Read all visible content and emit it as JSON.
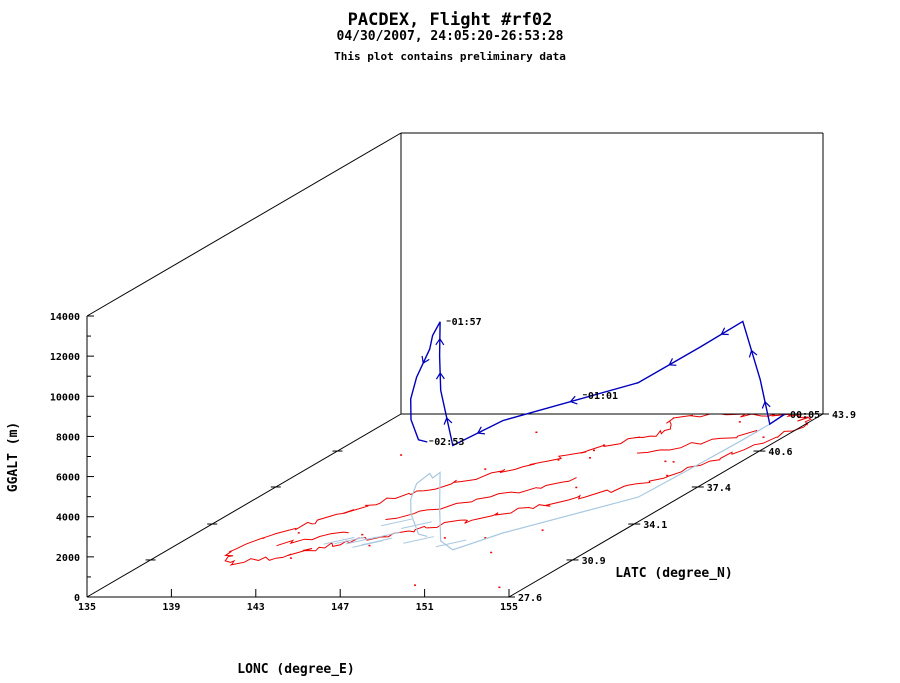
{
  "title": "PACDEX, Flight #rf02",
  "subtitle": "04/30/2007, 24:05:20-26:53:28",
  "note": "This plot contains preliminary data",
  "chart_data": {
    "type": "line3d",
    "xlabel": "LONC (degree_E)",
    "ylabel": "LATC (degree_N)",
    "zlabel": "GGALT (m)",
    "xlim": [
      135,
      155
    ],
    "ylim": [
      27.6,
      43.9
    ],
    "zlim": [
      0,
      14000
    ],
    "x_ticks": [
      "135",
      "139",
      "143",
      "147",
      "151",
      "155"
    ],
    "y_ticks": [
      "27.6",
      "30.9",
      "34.1",
      "37.4",
      "40.6",
      "43.9"
    ],
    "z_ticks": [
      "0",
      "2000",
      "4000",
      "6000",
      "8000",
      "10000",
      "12000",
      "14000"
    ],
    "grid": false,
    "colors": {
      "track": "#0000bb",
      "coast": "#ee0000",
      "shadow": "#a8c8e0",
      "frame": "#000000"
    },
    "time_labels": [
      {
        "text": "00:05",
        "lon": 153.2,
        "lat": 43.9,
        "alt": 0
      },
      {
        "text": "01:01",
        "lon": 151.2,
        "lat": 35.6,
        "alt": 5600
      },
      {
        "text": "01:57",
        "lon": 142.0,
        "lat": 38.6,
        "alt": 7600
      },
      {
        "text": "02:53",
        "lon": 146.2,
        "lat": 33.1,
        "alt": 4700
      }
    ],
    "series": [
      {
        "values": [
          {
            "lon": 153.2,
            "lat": 43.9,
            "alt": 0
          },
          {
            "lon": 153.3,
            "lat": 43.0,
            "alt": 0
          },
          {
            "lon": 153.3,
            "lat": 42.5,
            "alt": 2500
          },
          {
            "lon": 153.3,
            "lat": 41.6,
            "alt": 5900
          },
          {
            "lon": 153.2,
            "lat": 39.5,
            "alt": 5800
          },
          {
            "lon": 153.0,
            "lat": 36.5,
            "alt": 5700
          },
          {
            "lon": 149.5,
            "lat": 33.3,
            "alt": 5600
          },
          {
            "lon": 148.5,
            "lat": 31.8,
            "alt": 5200
          },
          {
            "lon": 147.2,
            "lat": 32.6,
            "alt": 7500
          },
          {
            "lon": 144.5,
            "lat": 35.5,
            "alt": 7600
          },
          {
            "lon": 141.6,
            "lat": 38.7,
            "alt": 7500
          },
          {
            "lon": 141.7,
            "lat": 38.2,
            "alt": 7100
          },
          {
            "lon": 141.2,
            "lat": 38.6,
            "alt": 6200
          },
          {
            "lon": 141.4,
            "lat": 37.7,
            "alt": 5300
          },
          {
            "lon": 142.4,
            "lat": 36.3,
            "alt": 5000
          },
          {
            "lon": 143.6,
            "lat": 35.0,
            "alt": 4700
          },
          {
            "lon": 145.6,
            "lat": 33.2,
            "alt": 4700
          },
          {
            "lon": 146.2,
            "lat": 33.0,
            "alt": 4700
          }
        ]
      }
    ]
  }
}
